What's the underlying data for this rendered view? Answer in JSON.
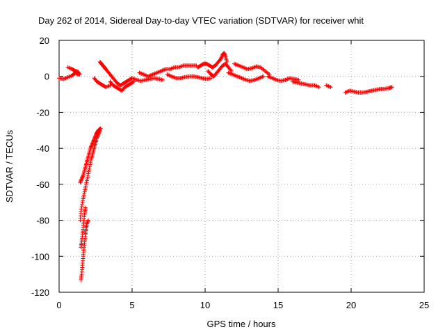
{
  "chart_data": {
    "type": "scatter",
    "title": "Day 262 of 2014, Sidereal Day-to-day VTEC variation (SDTVAR) for receiver whit",
    "xlabel": "GPS time / hours",
    "ylabel": "SDTVAR / TECUs",
    "xlim": [
      0,
      25
    ],
    "ylim": [
      -120,
      20
    ],
    "xticks": [
      0,
      5,
      10,
      15,
      20,
      25
    ],
    "yticks": [
      -120,
      -100,
      -80,
      -60,
      -40,
      -20,
      0,
      20
    ],
    "xtick_labels": [
      "0",
      "5",
      "10",
      "15",
      "20",
      "25"
    ],
    "ytick_labels": [
      "-120",
      "-100",
      "-80",
      "-60",
      "-40",
      "-20",
      "0",
      "20"
    ],
    "grid": true,
    "marker": "plus",
    "color": "#ff0000",
    "series": [
      {
        "segments": [
          [
            [
              0.0,
              -1
            ],
            [
              0.3,
              -1.5
            ],
            [
              0.6,
              -0.5
            ],
            [
              0.9,
              0.5
            ],
            [
              1.1,
              2
            ],
            [
              1.3,
              1
            ]
          ],
          [
            [
              0.6,
              5
            ],
            [
              0.9,
              4
            ],
            [
              1.1,
              3
            ],
            [
              1.3,
              2.5
            ],
            [
              1.4,
              1
            ]
          ],
          [
            [
              1.5,
              -113
            ],
            [
              1.55,
              -110
            ],
            [
              1.6,
              -105
            ],
            [
              1.65,
              -100
            ],
            [
              1.7,
              -96
            ],
            [
              1.75,
              -92
            ],
            [
              1.8,
              -88
            ],
            [
              1.85,
              -85
            ],
            [
              1.9,
              -82
            ],
            [
              2.0,
              -80
            ]
          ],
          [
            [
              1.5,
              -95
            ],
            [
              1.55,
              -92
            ],
            [
              1.6,
              -88
            ],
            [
              1.65,
              -84
            ],
            [
              1.7,
              -80
            ],
            [
              1.75,
              -76
            ],
            [
              1.8,
              -73
            ]
          ],
          [
            [
              1.45,
              -80
            ],
            [
              1.5,
              -75
            ],
            [
              1.6,
              -70
            ],
            [
              1.7,
              -66
            ],
            [
              1.8,
              -62
            ],
            [
              1.9,
              -58
            ],
            [
              2.0,
              -54
            ],
            [
              2.1,
              -50
            ],
            [
              2.2,
              -46
            ],
            [
              2.3,
              -43
            ],
            [
              2.4,
              -40
            ],
            [
              2.5,
              -37
            ],
            [
              2.6,
              -34
            ],
            [
              2.7,
              -32
            ],
            [
              2.8,
              -30
            ]
          ],
          [
            [
              1.45,
              -59
            ],
            [
              1.55,
              -57
            ],
            [
              1.65,
              -55
            ],
            [
              1.75,
              -52
            ],
            [
              1.85,
              -49
            ],
            [
              1.95,
              -46
            ],
            [
              2.05,
              -43
            ],
            [
              2.15,
              -40
            ],
            [
              2.25,
              -38
            ],
            [
              2.35,
              -36
            ],
            [
              2.45,
              -34
            ],
            [
              2.55,
              -32
            ],
            [
              2.65,
              -30.5
            ],
            [
              2.75,
              -29.5
            ],
            [
              2.85,
              -29
            ]
          ],
          [
            [
              2.4,
              -1
            ],
            [
              2.6,
              -3
            ],
            [
              2.8,
              -4
            ],
            [
              3.0,
              -5
            ],
            [
              3.2,
              -6
            ],
            [
              3.5,
              -5
            ]
          ],
          [
            [
              2.8,
              8
            ],
            [
              2.9,
              7
            ],
            [
              3.0,
              6
            ],
            [
              3.1,
              5
            ],
            [
              3.2,
              4
            ],
            [
              3.4,
              2
            ],
            [
              3.6,
              0
            ],
            [
              3.8,
              -2
            ],
            [
              4.0,
              -4
            ],
            [
              4.2,
              -5
            ],
            [
              4.4,
              -4
            ],
            [
              4.6,
              -3
            ],
            [
              4.8,
              -2
            ],
            [
              5.0,
              -1
            ]
          ],
          [
            [
              3.5,
              -3
            ],
            [
              3.7,
              -5
            ],
            [
              3.9,
              -6
            ],
            [
              4.1,
              -7
            ],
            [
              4.3,
              -8
            ],
            [
              4.5,
              -6
            ],
            [
              4.7,
              -5
            ],
            [
              4.9,
              -4
            ],
            [
              5.1,
              -3
            ]
          ],
          [
            [
              5.0,
              -1
            ],
            [
              5.3,
              -2
            ],
            [
              5.6,
              -2.5
            ],
            [
              5.9,
              -2
            ],
            [
              6.2,
              -1.5
            ],
            [
              6.5,
              -1
            ],
            [
              6.8,
              -1.5
            ],
            [
              7.1,
              -2
            ]
          ],
          [
            [
              5.5,
              2
            ],
            [
              5.8,
              1
            ],
            [
              6.1,
              0
            ],
            [
              6.4,
              1
            ],
            [
              6.7,
              2
            ],
            [
              7.0,
              3
            ],
            [
              7.3,
              4
            ],
            [
              7.6,
              4
            ],
            [
              7.9,
              5
            ],
            [
              8.2,
              5
            ],
            [
              8.5,
              6
            ],
            [
              8.8,
              6
            ],
            [
              9.1,
              6
            ],
            [
              9.4,
              6
            ]
          ],
          [
            [
              7.4,
              1
            ],
            [
              7.7,
              0
            ],
            [
              8.0,
              -1
            ],
            [
              8.3,
              -1
            ],
            [
              8.6,
              -0.5
            ],
            [
              8.9,
              0
            ],
            [
              9.2,
              0
            ],
            [
              9.5,
              -0.5
            ],
            [
              9.8,
              -1
            ],
            [
              10.1,
              -1.5
            ],
            [
              10.4,
              -1
            ]
          ],
          [
            [
              9.5,
              5
            ],
            [
              9.7,
              6
            ],
            [
              9.9,
              7
            ],
            [
              10.1,
              7
            ],
            [
              10.3,
              6
            ],
            [
              10.5,
              5
            ],
            [
              10.7,
              6
            ],
            [
              10.9,
              8
            ],
            [
              11.1,
              10
            ],
            [
              11.2,
              12
            ],
            [
              11.3,
              13
            ],
            [
              11.4,
              11
            ],
            [
              11.5,
              8
            ]
          ],
          [
            [
              10.2,
              3
            ],
            [
              10.4,
              1
            ],
            [
              10.6,
              0
            ],
            [
              10.8,
              2
            ],
            [
              11.0,
              4
            ],
            [
              11.2,
              6
            ],
            [
              11.4,
              7
            ],
            [
              11.6,
              5
            ],
            [
              11.8,
              3
            ]
          ],
          [
            [
              12.0,
              7
            ],
            [
              12.3,
              6
            ],
            [
              12.6,
              5
            ],
            [
              12.9,
              4
            ],
            [
              13.2,
              4.5
            ],
            [
              13.5,
              5.5
            ],
            [
              13.8,
              5
            ],
            [
              14.1,
              3
            ],
            [
              14.4,
              1
            ]
          ],
          [
            [
              11.6,
              2
            ],
            [
              11.9,
              1
            ],
            [
              12.2,
              0
            ],
            [
              12.5,
              -1
            ],
            [
              12.8,
              -2
            ],
            [
              13.1,
              -2.5
            ],
            [
              13.4,
              -2
            ],
            [
              13.7,
              -1
            ],
            [
              14.0,
              0
            ]
          ],
          [
            [
              14.3,
              0
            ],
            [
              14.6,
              -1
            ],
            [
              14.9,
              -2
            ],
            [
              15.2,
              -2.5
            ],
            [
              15.5,
              -2
            ],
            [
              15.8,
              -1
            ],
            [
              16.1,
              -1.5
            ],
            [
              16.4,
              -2
            ]
          ],
          [
            [
              16.0,
              -3
            ],
            [
              16.3,
              -3.5
            ],
            [
              16.6,
              -4
            ],
            [
              16.9,
              -4.5
            ],
            [
              17.2,
              -5
            ],
            [
              17.5,
              -5
            ],
            [
              17.8,
              -6
            ]
          ],
          [
            [
              18.3,
              -5
            ],
            [
              18.6,
              -6
            ]
          ],
          [
            [
              19.6,
              -9
            ],
            [
              19.9,
              -8
            ],
            [
              20.2,
              -8.5
            ],
            [
              20.5,
              -9
            ],
            [
              20.8,
              -9
            ],
            [
              21.1,
              -8.5
            ],
            [
              21.4,
              -8
            ],
            [
              21.7,
              -7.5
            ],
            [
              22.0,
              -7
            ],
            [
              22.3,
              -7
            ],
            [
              22.6,
              -6.5
            ],
            [
              22.8,
              -6
            ]
          ]
        ]
      }
    ]
  }
}
